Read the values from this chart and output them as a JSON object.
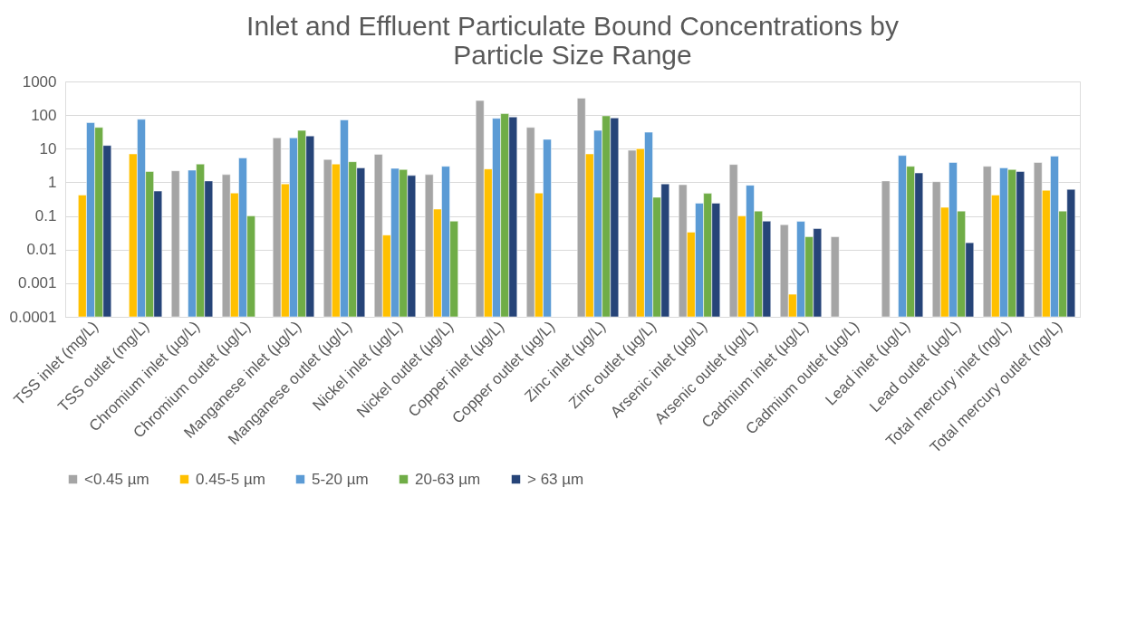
{
  "chart_data": {
    "type": "bar",
    "title": "Inlet and Effluent Particulate Bound Concentrations by Particle Size Range",
    "categories": [
      "TSS inlet (mg/L)",
      "TSS outlet (mg/L)",
      "Chromium inlet (µg/L)",
      "Chromium outlet (µg/L)",
      "Manganese inlet (µg/L)",
      "Manganese outlet (µg/L)",
      "Nickel inlet (µg/L)",
      "Nickel outlet (µg/L)",
      "Copper inlet (µg/L)",
      "Copper outlet (µg/L)",
      "Zinc inlet (µg/L)",
      "Zinc outlet (µg/L)",
      "Arsenic inlet (µg/L)",
      "Arsenic outlet (µg/L)",
      "Cadmium inlet (µg/L)",
      "Cadmium outlet (µg/L)",
      "Lead inlet (µg/L)",
      "Lead outlet (µg/L)",
      "Total mercury inlet (ng/L)",
      "Total mercury outlet (ng/L)"
    ],
    "series": [
      {
        "name": "<0.45 µm",
        "color": "#a5a5a5",
        "values": [
          null,
          null,
          2.2,
          1.7,
          21,
          4.8,
          6.8,
          1.7,
          270,
          43,
          320,
          9,
          0.85,
          3.4,
          0.055,
          0.024,
          1.1,
          1.05,
          3,
          3.9
        ]
      },
      {
        "name": "0.45-5 µm",
        "color": "#ffc000",
        "values": [
          0.42,
          7,
          null,
          0.48,
          0.9,
          3.5,
          0.027,
          0.16,
          2.5,
          0.48,
          7,
          10,
          0.033,
          0.1,
          0.00047,
          null,
          null,
          0.18,
          0.42,
          0.58
        ]
      },
      {
        "name": "5-20 µm",
        "color": "#5b9bd5",
        "values": [
          60,
          75,
          2.3,
          5.3,
          21,
          72,
          2.6,
          3,
          80,
          19,
          35,
          31,
          0.24,
          0.82,
          0.069,
          null,
          6.3,
          3.9,
          2.7,
          6
        ]
      },
      {
        "name": "20-63 µm",
        "color": "#70ad47",
        "values": [
          43,
          2.1,
          3.5,
          0.1,
          35,
          4.1,
          2.4,
          0.07,
          110,
          null,
          95,
          0.36,
          0.47,
          0.14,
          0.024,
          null,
          3,
          0.14,
          2.4,
          0.14
        ]
      },
      {
        "name": "> 63 µm",
        "color": "#264478",
        "values": [
          12.5,
          0.55,
          1.1,
          null,
          24,
          2.7,
          1.6,
          null,
          88,
          null,
          82,
          0.9,
          0.24,
          0.07,
          0.042,
          null,
          1.9,
          0.016,
          2.1,
          0.62
        ]
      }
    ],
    "log": true,
    "ylim": [
      0.0001,
      1000
    ],
    "yticks": [
      0.0001,
      0.001,
      0.01,
      0.1,
      1,
      10,
      100,
      1000
    ],
    "grid": "y",
    "legend": "bottom"
  }
}
